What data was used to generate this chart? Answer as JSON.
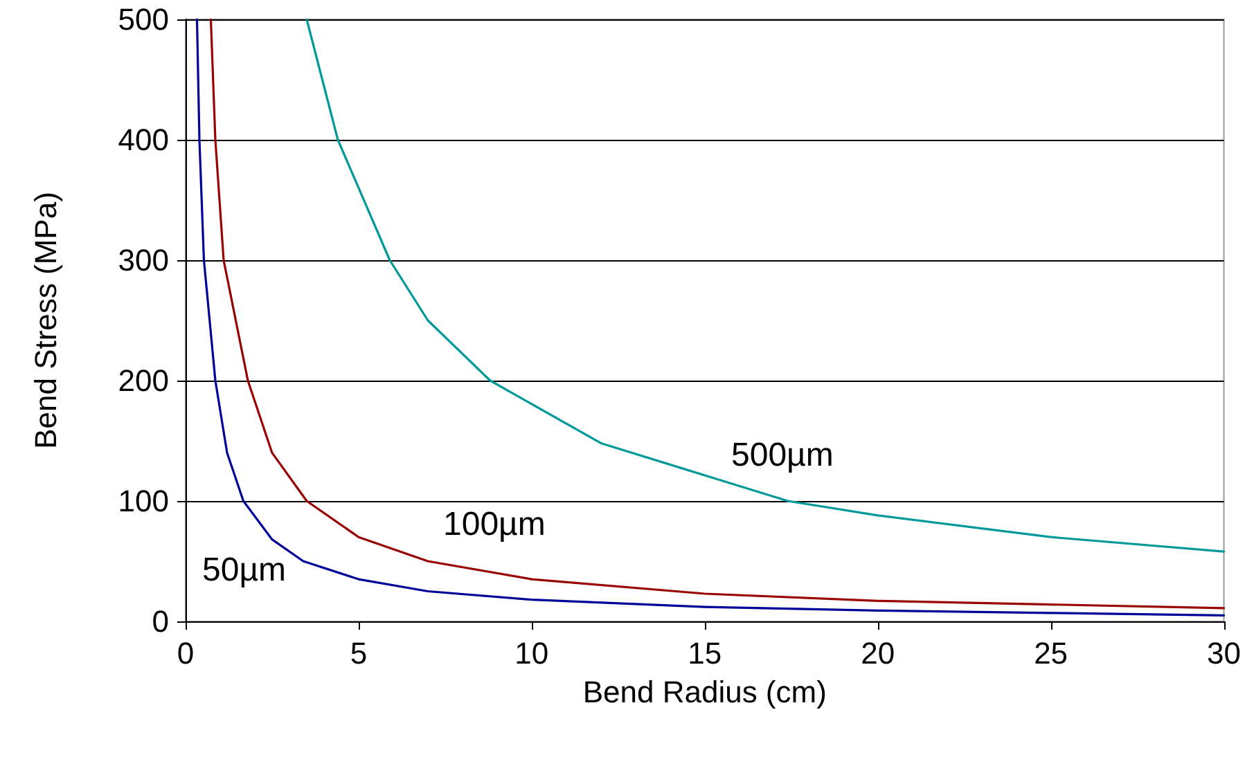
{
  "chart_data": {
    "type": "line",
    "xlabel": "Bend Radius (cm)",
    "ylabel": "Bend Stress (MPa)",
    "xlim": [
      0,
      30
    ],
    "xticks": [
      0,
      5,
      10,
      15,
      20,
      25,
      30
    ],
    "ylim": [
      0,
      500
    ],
    "yticks": [
      0,
      100,
      200,
      300,
      400,
      500
    ],
    "grid": "y",
    "legend": false,
    "marker": "none",
    "line_style": "solid",
    "series": [
      {
        "name": "50µm",
        "color": "#000099",
        "x": [
          0.33,
          0.4,
          0.53,
          0.86,
          1.2,
          1.67,
          2.5,
          3.4,
          5,
          7,
          10,
          15,
          20,
          25,
          30
        ],
        "values": [
          500,
          400,
          300,
          200,
          140,
          100,
          68,
          50,
          35,
          25,
          18,
          12,
          9,
          7,
          5
        ]
      },
      {
        "name": "100µm",
        "color": "#990000",
        "x": [
          0.73,
          0.86,
          1.1,
          1.8,
          2.5,
          3.5,
          5,
          7,
          10,
          15,
          20,
          25,
          30
        ],
        "values": [
          500,
          400,
          300,
          200,
          140,
          100,
          70,
          50,
          35,
          23,
          17,
          14,
          11
        ]
      },
      {
        "name": "500µm",
        "color": "#009999",
        "x": [
          3.5,
          4.4,
          5.9,
          7,
          8.8,
          12,
          17.4,
          20,
          25,
          30
        ],
        "values": [
          500,
          400,
          300,
          250,
          200,
          148,
          100,
          88,
          70,
          58
        ]
      }
    ]
  }
}
